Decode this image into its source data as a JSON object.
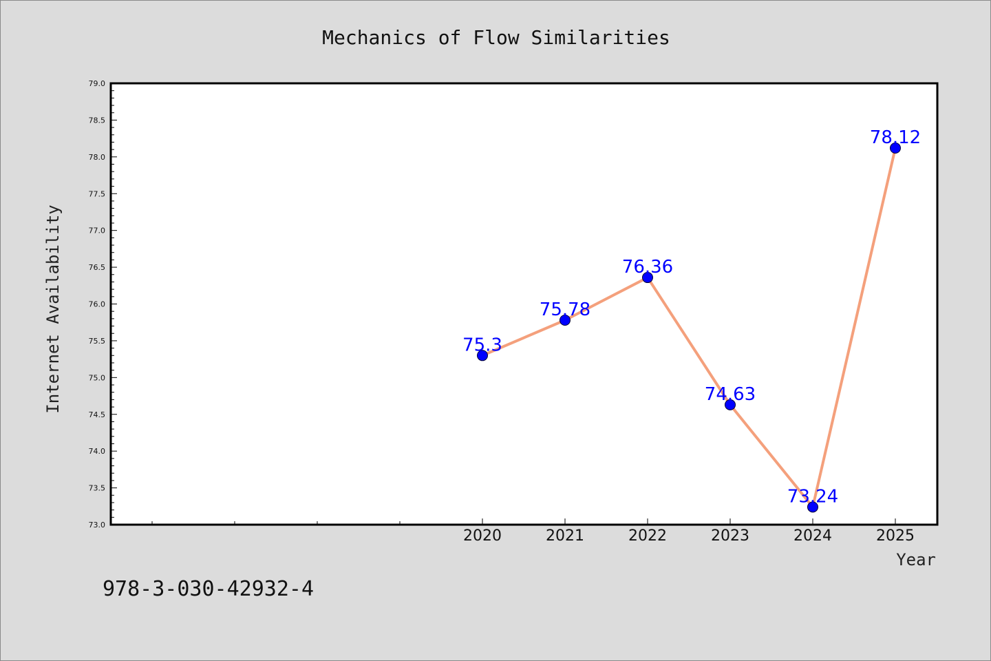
{
  "chart_data": {
    "type": "line",
    "title": "Mechanics of Flow Similarities",
    "xlabel": "Year",
    "ylabel": "Internet Availability",
    "categories": [
      "2020",
      "2021",
      "2022",
      "2023",
      "2024",
      "2025"
    ],
    "series": [
      {
        "values": [
          75.3,
          75.78,
          76.36,
          74.63,
          73.24,
          78.12
        ],
        "labels": [
          "75.3",
          "75.78",
          "76.36",
          "74.63",
          "73.24",
          "78.12"
        ],
        "line_color": "#f4a07c",
        "marker_color": "#0000ff"
      }
    ],
    "ylim": [
      73.0,
      79.0
    ],
    "yticks": [
      "73.0",
      "73.5",
      "74.0",
      "74.5",
      "75.0",
      "75.5",
      "76.0",
      "76.5",
      "77.0",
      "77.5",
      "78.0",
      "78.5",
      "79.0"
    ],
    "grid": false,
    "legend": "none"
  },
  "annotation": {
    "text": "978-3-030-42932-4"
  }
}
